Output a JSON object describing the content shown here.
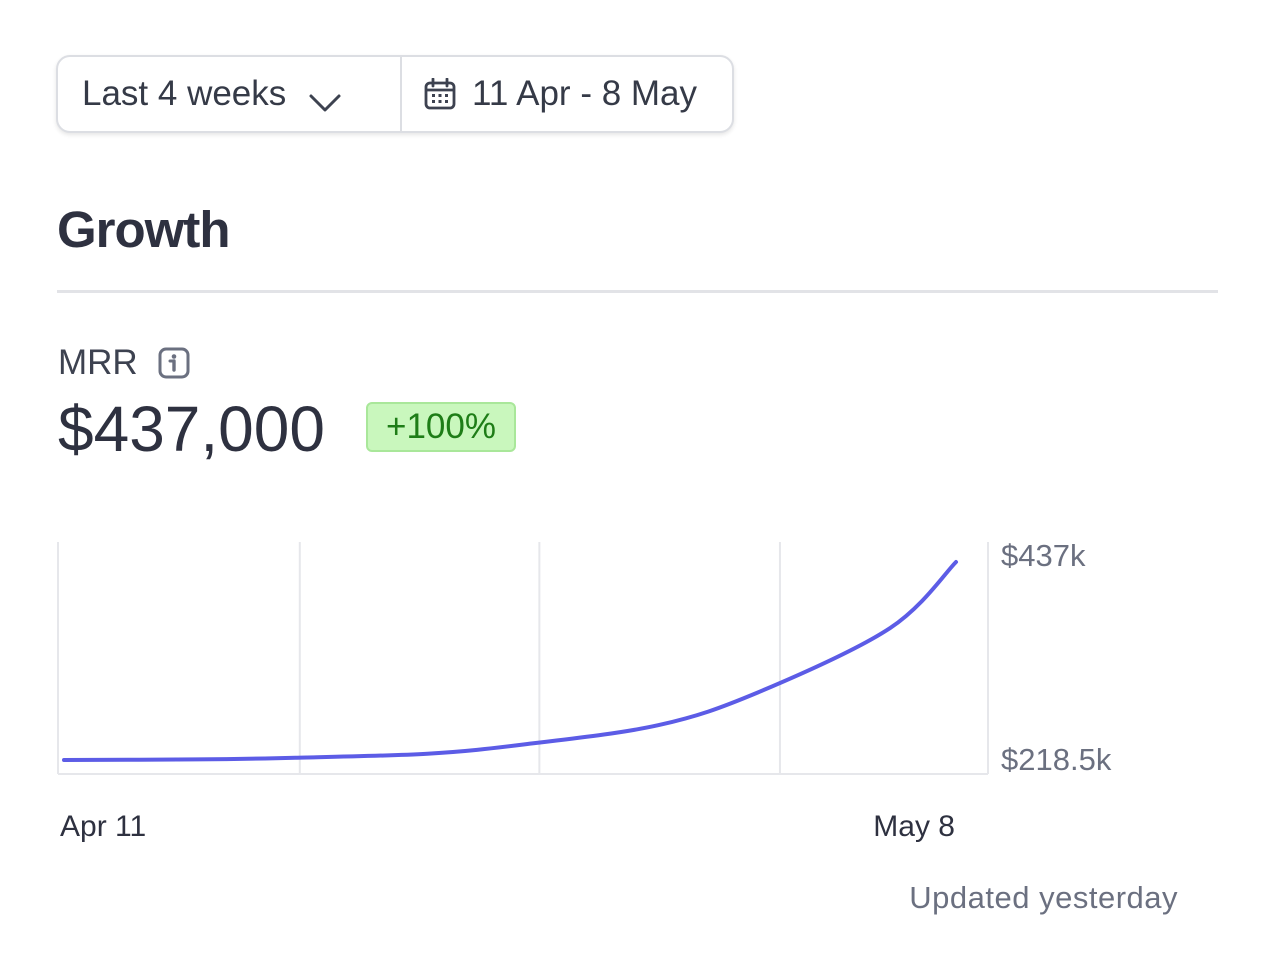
{
  "filters": {
    "range_label": "Last 4 weeks",
    "date_range_label": "11 Apr - 8 May"
  },
  "section": {
    "title": "Growth"
  },
  "metric": {
    "label": "MRR",
    "value": "$437,000",
    "change_badge": "+100%"
  },
  "footer": {
    "updated_text": "Updated yesterday"
  },
  "colors": {
    "line": "#5c5ce6",
    "badge_bg": "#c9f7bd",
    "badge_text": "#1e7d17"
  },
  "icons": {
    "range_dropdown": "chevron-down-icon",
    "date_picker": "calendar-icon",
    "metric_info": "info-icon"
  },
  "chart_data": {
    "type": "line",
    "x": [
      "2024-04-11",
      "2024-04-15",
      "2024-04-18",
      "2024-04-22",
      "2024-04-25",
      "2024-04-29",
      "2024-05-02",
      "2024-05-06",
      "2024-05-08"
    ],
    "x_tick_labels": [
      "Apr 11",
      "May 8"
    ],
    "y_tick_labels": [
      "$437k",
      "$218.5k"
    ],
    "series": [
      {
        "values": [
          218500,
          219200,
          221000,
          225500,
          236000,
          257000,
          293000,
          364000,
          437000
        ]
      }
    ],
    "ylim": [
      218500,
      437000
    ],
    "grid": "vertical",
    "y_axis_position": "right"
  }
}
